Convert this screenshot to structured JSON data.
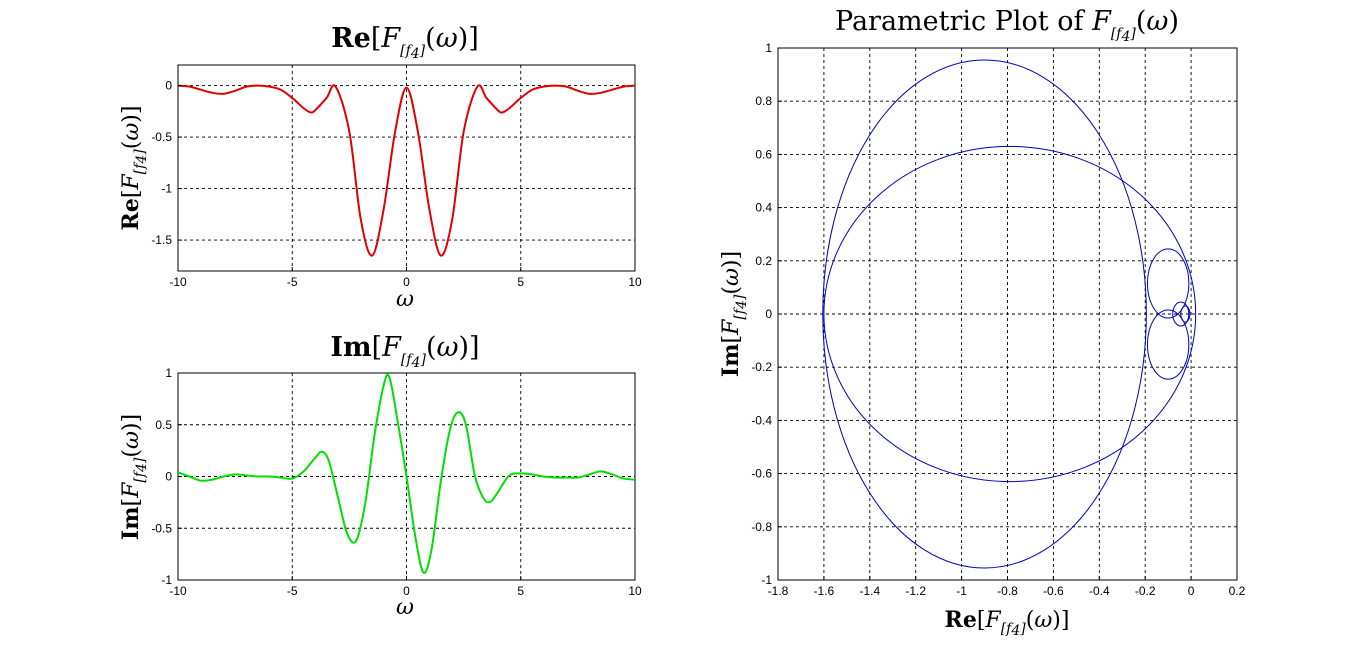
{
  "chart_data": [
    {
      "type": "line",
      "id": "real",
      "title_bold": "Re",
      "ylabel_bold": "Re",
      "var_F": "F",
      "var_f": "f",
      "sub_4": "4",
      "var_omega": "ω",
      "xlabel": "ω",
      "xlim": [
        -10,
        10
      ],
      "ylim": [
        -1.8,
        0.2
      ],
      "xticks": [
        -10,
        -5,
        0,
        5,
        10
      ],
      "xtick_labels": [
        "-10",
        "-5",
        "0",
        "5",
        "10"
      ],
      "yticks": [
        0,
        -0.5,
        -1,
        -1.5
      ],
      "ytick_labels": [
        "0",
        "-0.5",
        "-1",
        "-1.5"
      ],
      "grid": true,
      "color": "#e00000",
      "series": [
        {
          "x": [
            -10,
            -9.5,
            -9,
            -8.5,
            -8,
            -7.5,
            -7,
            -6.5,
            -6,
            -5.5,
            -5,
            -4.5,
            -4.2,
            -4,
            -3.5,
            -3.1,
            -2.5,
            -2,
            -1.5,
            -1,
            -0.5,
            0,
            0.5,
            1,
            1.5,
            2,
            2.5,
            3.1,
            3.5,
            4,
            4.2,
            4.5,
            5,
            5.5,
            6,
            6.5,
            7,
            7.5,
            8,
            8.5,
            9,
            9.5,
            10
          ],
          "y": [
            0,
            -0.01,
            -0.04,
            -0.07,
            -0.08,
            -0.05,
            -0.01,
            0,
            -0.01,
            -0.04,
            -0.12,
            -0.22,
            -0.26,
            -0.24,
            -0.12,
            -0.01,
            -0.45,
            -1.3,
            -1.65,
            -1.2,
            -0.45,
            -0.02,
            -0.45,
            -1.2,
            -1.65,
            -1.3,
            -0.45,
            -0.01,
            -0.12,
            -0.24,
            -0.26,
            -0.22,
            -0.12,
            -0.04,
            -0.01,
            0,
            -0.01,
            -0.05,
            -0.08,
            -0.07,
            -0.04,
            -0.01,
            0
          ]
        }
      ]
    },
    {
      "type": "line",
      "id": "imag",
      "title_bold": "Im",
      "ylabel_bold": "Im",
      "var_F": "F",
      "var_f": "f",
      "sub_4": "4",
      "var_omega": "ω",
      "xlabel": "ω",
      "xlim": [
        -10,
        10
      ],
      "ylim": [
        -1,
        1
      ],
      "xticks": [
        -10,
        -5,
        0,
        5,
        10
      ],
      "xtick_labels": [
        "-10",
        "-5",
        "0",
        "5",
        "10"
      ],
      "yticks": [
        1,
        0.5,
        0,
        -0.5,
        -1
      ],
      "ytick_labels": [
        "1",
        "0.5",
        "0",
        "-0.5",
        "-1"
      ],
      "grid": true,
      "color": "#00e000",
      "series": [
        {
          "x": [
            -10,
            -9.5,
            -9,
            -8.5,
            -8,
            -7.5,
            -7,
            -6.5,
            -6,
            -5.5,
            -5,
            -4.5,
            -4,
            -3.7,
            -3.4,
            -3,
            -2.6,
            -2.2,
            -1.8,
            -1.4,
            -1,
            -0.75,
            -0.4,
            0,
            0.4,
            0.75,
            1.1,
            1.5,
            1.9,
            2.25,
            2.6,
            3,
            3.4,
            3.7,
            4,
            4.5,
            5,
            5.5,
            6,
            6.5,
            7,
            7.5,
            8,
            8.5,
            9,
            9.5,
            10
          ],
          "y": [
            0.04,
            0,
            -0.04,
            -0.03,
            0,
            0.02,
            0.01,
            0,
            0,
            -0.01,
            -0.02,
            0.05,
            0.18,
            0.24,
            0.15,
            -0.2,
            -0.55,
            -0.62,
            -0.25,
            0.4,
            0.88,
            0.96,
            0.55,
            0,
            -0.6,
            -0.93,
            -0.7,
            -0.05,
            0.45,
            0.62,
            0.5,
            0,
            -0.22,
            -0.24,
            -0.15,
            0.01,
            0.03,
            0.02,
            0,
            -0.01,
            -0.01,
            -0.01,
            0.02,
            0.05,
            0.02,
            -0.02,
            -0.03
          ]
        }
      ]
    },
    {
      "type": "line",
      "id": "parametric",
      "title_prefix": "Parametric Plot of",
      "var_F": "F",
      "var_f": "f",
      "sub_4": "4",
      "var_omega": "ω",
      "xlabel_bold": "Re",
      "ylabel_bold": "Im",
      "xlim": [
        -1.8,
        0.2
      ],
      "ylim": [
        -1,
        1
      ],
      "xticks": [
        -1.8,
        -1.6,
        -1.4,
        -1.2,
        -1,
        -0.8,
        -0.6,
        -0.4,
        -0.2,
        0,
        0.2
      ],
      "xtick_labels": [
        "-1.8",
        "-1.6",
        "-1.4",
        "-1.2",
        "-1",
        "-0.8",
        "-0.6",
        "-0.4",
        "-0.2",
        "0",
        "0.2"
      ],
      "yticks": [
        1,
        0.8,
        0.6,
        0.4,
        0.2,
        0,
        -0.2,
        -0.4,
        -0.6,
        -0.8,
        -1
      ],
      "ytick_labels": [
        "1",
        "0.8",
        "0.6",
        "0.4",
        "0.2",
        "0",
        "-0.2",
        "-0.4",
        "-0.6",
        "-0.8",
        "-1"
      ],
      "grid": true,
      "color": "#0000c0",
      "loops": [
        {
          "cx": -0.9,
          "rx": 0.705,
          "ry": 0.955
        },
        {
          "cx": -0.79,
          "rx": 0.81,
          "ry": 0.63
        },
        {
          "cx": -0.1,
          "cy": 0.115,
          "rx": 0.09,
          "ry": 0.13
        },
        {
          "cx": -0.1,
          "cy": -0.115,
          "rx": 0.09,
          "ry": 0.13
        },
        {
          "cx": -0.045,
          "rx": 0.035,
          "ry": 0.045
        },
        {
          "cx": -0.025,
          "rx": 0.02,
          "ry": 0.03
        }
      ]
    }
  ]
}
